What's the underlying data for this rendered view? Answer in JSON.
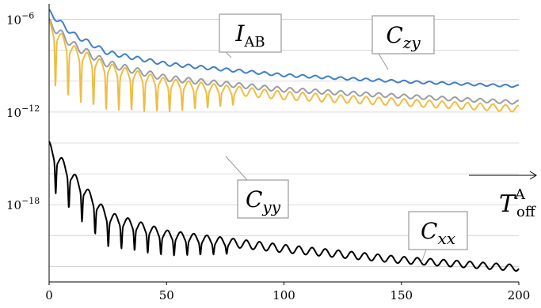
{
  "chart_data": {
    "type": "line",
    "xlim": [
      0,
      200
    ],
    "ylim_log10": [
      -23,
      -5
    ],
    "y_scale": "log",
    "x_ticks": [
      "0",
      "50",
      "100",
      "150",
      "200"
    ],
    "y_ticks": [
      {
        "base": "10",
        "exp": "−6",
        "log10": -6
      },
      {
        "base": "10",
        "exp": "−12",
        "log10": -12
      },
      {
        "base": "10",
        "exp": "−18",
        "log10": -18
      }
    ],
    "grid": "horizontal",
    "xlabel": {
      "main": "T",
      "sup": "A",
      "sub": "off"
    },
    "series": [
      {
        "name": "I",
        "name_sub": "AB",
        "color": "#3d7fc8",
        "points": [
          [
            0,
            -5.7
          ],
          [
            10,
            -7.1
          ],
          [
            25,
            -8.3
          ],
          [
            50,
            -9.0
          ],
          [
            100,
            -9.7
          ],
          [
            150,
            -10.1
          ],
          [
            200,
            -10.4
          ]
        ]
      },
      {
        "name": "C",
        "name_sub": "zy",
        "color": "#999da3",
        "points": [
          [
            0,
            -6.5
          ],
          [
            10,
            -7.9
          ],
          [
            25,
            -9.1
          ],
          [
            50,
            -10.0
          ],
          [
            100,
            -10.7
          ],
          [
            150,
            -11.1
          ],
          [
            200,
            -11.5
          ]
        ]
      },
      {
        "name": "C",
        "name_sub": "yy",
        "color": "#efbd43",
        "points": [
          [
            0,
            -7.0
          ],
          [
            10,
            -8.5
          ],
          [
            25,
            -9.6
          ],
          [
            50,
            -10.5
          ],
          [
            100,
            -11.2
          ],
          [
            150,
            -11.6
          ],
          [
            200,
            -12.0
          ]
        ]
      },
      {
        "name": "C",
        "name_sub": "xx",
        "color": "#000000",
        "points": [
          [
            0,
            -14.8
          ],
          [
            10,
            -16.7
          ],
          [
            25,
            -19.2
          ],
          [
            50,
            -20.3
          ],
          [
            100,
            -21.1
          ],
          [
            150,
            -21.8
          ],
          [
            200,
            -22.3
          ]
        ]
      }
    ]
  }
}
